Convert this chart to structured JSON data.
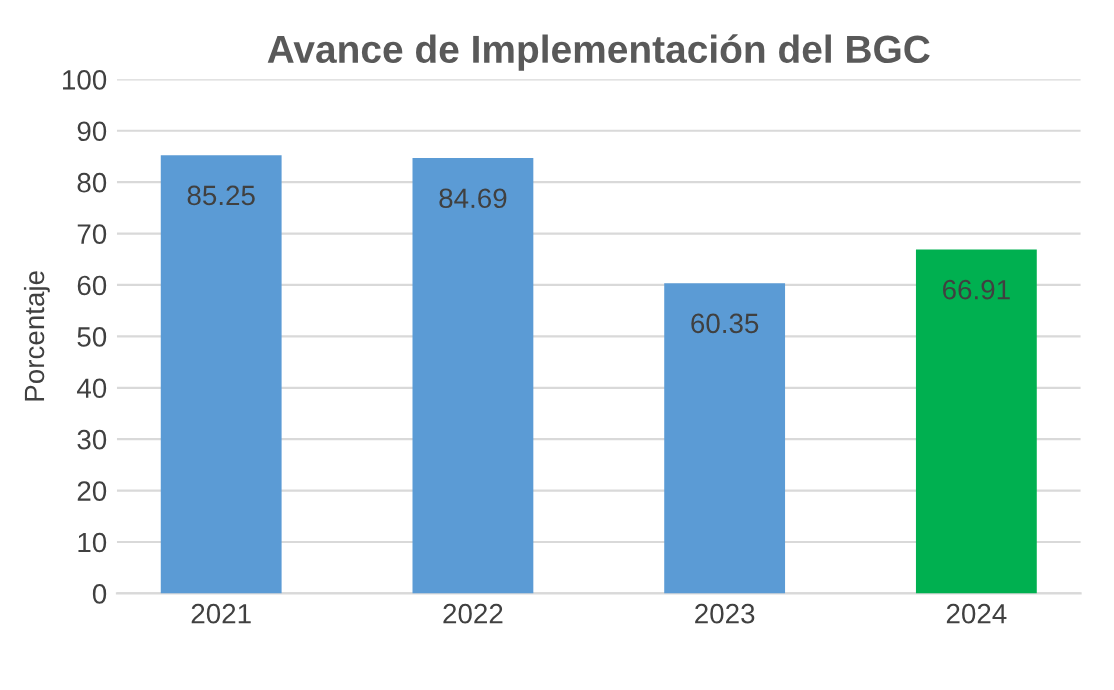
{
  "chart_data": {
    "type": "bar",
    "title": "Avance de Implementación del BGC",
    "ylabel": "Porcentaje",
    "categories": [
      "2021",
      "2022",
      "2023",
      "2024"
    ],
    "values": [
      85.25,
      84.69,
      60.35,
      66.91
    ],
    "colors": [
      "#5b9bd5",
      "#5b9bd5",
      "#5b9bd5",
      "#00b050"
    ],
    "ylim": [
      0,
      100
    ],
    "yticks": [
      0,
      10,
      20,
      30,
      40,
      50,
      60,
      70,
      80,
      90,
      100
    ],
    "grid": "y",
    "data_labels": true,
    "legend": false
  }
}
